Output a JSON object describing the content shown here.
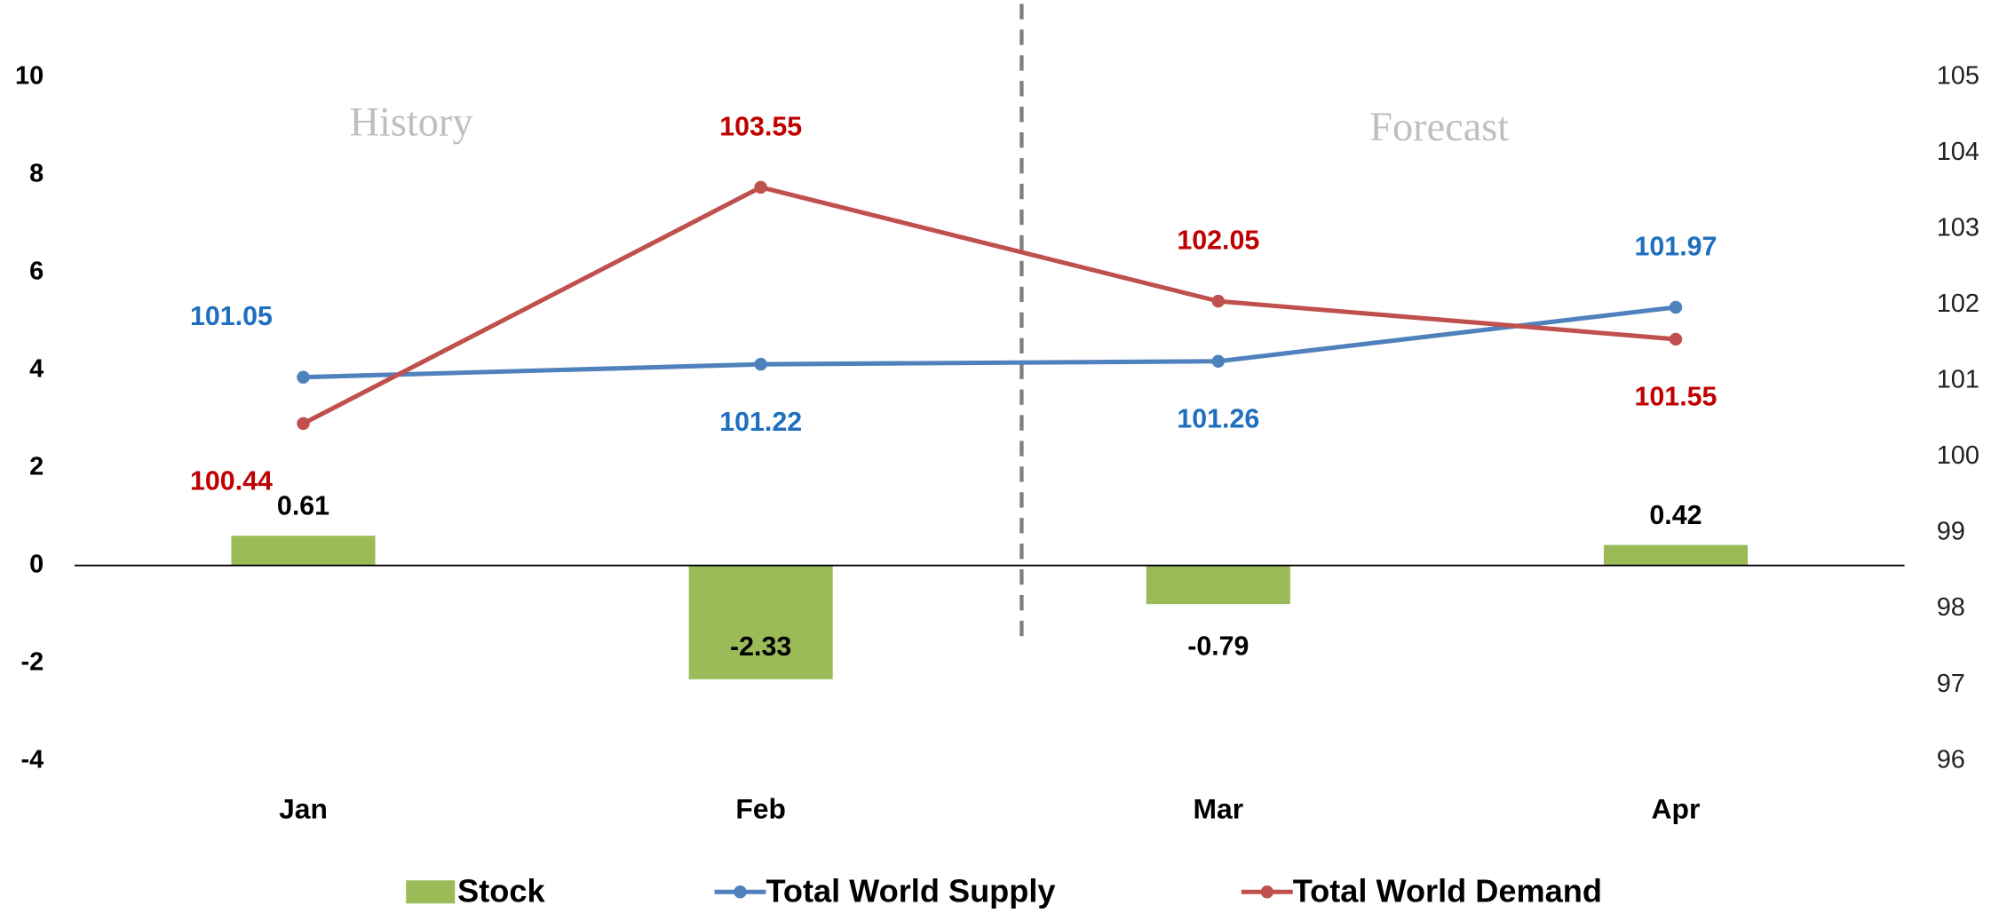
{
  "chart_data": {
    "type": "bar_line",
    "categories": [
      "Jan",
      "Feb",
      "Mar",
      "Apr"
    ],
    "series": [
      {
        "name": "Stock",
        "type": "bar",
        "color": "#9bbb59",
        "values": [
          0.61,
          -2.33,
          -0.79,
          0.42
        ]
      },
      {
        "name": "Total World Supply",
        "type": "line",
        "axis": "y2",
        "color": "#4f81bd",
        "label_color": "#1f6fbf",
        "values": [
          101.05,
          101.22,
          101.26,
          101.97
        ]
      },
      {
        "name": "Total World Demand",
        "type": "line",
        "axis": "y2",
        "color": "#c0504d",
        "label_color": "#c00000",
        "values": [
          100.44,
          103.55,
          102.05,
          101.55
        ]
      }
    ],
    "ylim": [
      -4,
      10
    ],
    "yticks": [
      -4,
      -2,
      0,
      2,
      4,
      6,
      8,
      10
    ],
    "y2lim": [
      96,
      105
    ],
    "y2ticks": [
      96,
      97,
      98,
      99,
      100,
      101,
      102,
      103,
      104,
      105
    ],
    "annotations": [
      {
        "text": "History"
      },
      {
        "text": "Forecast"
      }
    ],
    "legend": "bottom"
  }
}
